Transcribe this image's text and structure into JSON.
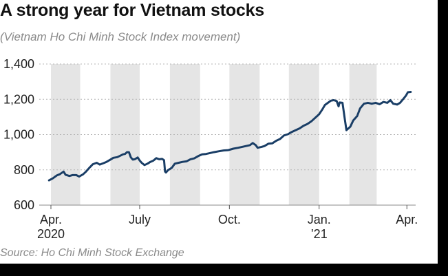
{
  "title": "A strong year for Vietnam stocks",
  "subtitle": "(Vietnam Ho Chi Minh Stock Index movement)",
  "source": "Source: Ho Chi Minh Stock Exchange",
  "colors": {
    "line": "#1a3e66",
    "band": "#e5e5e5",
    "grid": "#b5b5b5",
    "background": "#ffffff",
    "frame": "#000000"
  },
  "chart_data": {
    "type": "line",
    "title": "A strong year for Vietnam stocks",
    "subtitle": "(Vietnam Ho Chi Minh Stock Index movement)",
    "xlabel": "",
    "ylabel": "",
    "ylim": [
      600,
      1400
    ],
    "yticks": [
      600,
      800,
      1000,
      1200,
      1400
    ],
    "ytick_labels": [
      "600",
      "800",
      "1,000",
      "1,200",
      "1,400"
    ],
    "xlim": [
      "2020-03-20",
      "2021-04-10"
    ],
    "xticks": [
      {
        "date": "2020-04-01",
        "label": "Apr.",
        "sublabel": "2020"
      },
      {
        "date": "2020-07-01",
        "label": "July",
        "sublabel": ""
      },
      {
        "date": "2020-10-01",
        "label": "Oct.",
        "sublabel": ""
      },
      {
        "date": "2021-01-01",
        "label": "Jan.",
        "sublabel": "’21"
      },
      {
        "date": "2021-04-01",
        "label": "Apr.",
        "sublabel": ""
      }
    ],
    "grid": true,
    "shaded_months": [
      "2020-04",
      "2020-06",
      "2020-08",
      "2020-10",
      "2020-12",
      "2021-02"
    ],
    "series": [
      {
        "points": [
          [
            "2020-03-30",
            740
          ],
          [
            "2020-04-03",
            752
          ],
          [
            "2020-04-07",
            768
          ],
          [
            "2020-04-10",
            775
          ],
          [
            "2020-04-14",
            790
          ],
          [
            "2020-04-16",
            772
          ],
          [
            "2020-04-20",
            765
          ],
          [
            "2020-04-23",
            770
          ],
          [
            "2020-04-27",
            770
          ],
          [
            "2020-04-30",
            762
          ],
          [
            "2020-05-04",
            775
          ],
          [
            "2020-05-07",
            790
          ],
          [
            "2020-05-11",
            815
          ],
          [
            "2020-05-14",
            832
          ],
          [
            "2020-05-18",
            840
          ],
          [
            "2020-05-21",
            830
          ],
          [
            "2020-05-25",
            838
          ],
          [
            "2020-05-28",
            845
          ],
          [
            "2020-06-01",
            858
          ],
          [
            "2020-06-04",
            868
          ],
          [
            "2020-06-08",
            872
          ],
          [
            "2020-06-11",
            880
          ],
          [
            "2020-06-14",
            888
          ],
          [
            "2020-06-16",
            890
          ],
          [
            "2020-06-18",
            900
          ],
          [
            "2020-06-20",
            900
          ],
          [
            "2020-06-22",
            870
          ],
          [
            "2020-06-24",
            858
          ],
          [
            "2020-06-26",
            860
          ],
          [
            "2020-06-29",
            870
          ],
          [
            "2020-07-01",
            853
          ],
          [
            "2020-07-03",
            840
          ],
          [
            "2020-07-06",
            827
          ],
          [
            "2020-07-09",
            835
          ],
          [
            "2020-07-12",
            845
          ],
          [
            "2020-07-15",
            852
          ],
          [
            "2020-07-18",
            866
          ],
          [
            "2020-07-21",
            860
          ],
          [
            "2020-07-24",
            862
          ],
          [
            "2020-07-26",
            855
          ],
          [
            "2020-07-27",
            790
          ],
          [
            "2020-07-28",
            785
          ],
          [
            "2020-07-30",
            798
          ],
          [
            "2020-08-03",
            812
          ],
          [
            "2020-08-06",
            835
          ],
          [
            "2020-08-10",
            840
          ],
          [
            "2020-08-14",
            845
          ],
          [
            "2020-08-18",
            848
          ],
          [
            "2020-08-22",
            860
          ],
          [
            "2020-08-26",
            865
          ],
          [
            "2020-08-30",
            878
          ],
          [
            "2020-09-03",
            888
          ],
          [
            "2020-09-07",
            890
          ],
          [
            "2020-09-11",
            895
          ],
          [
            "2020-09-15",
            900
          ],
          [
            "2020-09-20",
            905
          ],
          [
            "2020-09-25",
            910
          ],
          [
            "2020-09-30",
            912
          ],
          [
            "2020-10-05",
            920
          ],
          [
            "2020-10-10",
            925
          ],
          [
            "2020-10-14",
            930
          ],
          [
            "2020-10-18",
            935
          ],
          [
            "2020-10-22",
            940
          ],
          [
            "2020-10-25",
            952
          ],
          [
            "2020-10-28",
            940
          ],
          [
            "2020-10-30",
            925
          ],
          [
            "2020-11-03",
            930
          ],
          [
            "2020-11-06",
            935
          ],
          [
            "2020-11-10",
            948
          ],
          [
            "2020-11-14",
            950
          ],
          [
            "2020-11-18",
            965
          ],
          [
            "2020-11-22",
            975
          ],
          [
            "2020-11-26",
            995
          ],
          [
            "2020-11-30",
            1002
          ],
          [
            "2020-12-04",
            1015
          ],
          [
            "2020-12-08",
            1025
          ],
          [
            "2020-12-12",
            1035
          ],
          [
            "2020-12-16",
            1050
          ],
          [
            "2020-12-20",
            1060
          ],
          [
            "2020-12-24",
            1075
          ],
          [
            "2020-12-28",
            1095
          ],
          [
            "2021-01-01",
            1115
          ],
          [
            "2021-01-04",
            1140
          ],
          [
            "2021-01-07",
            1168
          ],
          [
            "2021-01-10",
            1180
          ],
          [
            "2021-01-13",
            1192
          ],
          [
            "2021-01-16",
            1195
          ],
          [
            "2021-01-19",
            1190
          ],
          [
            "2021-01-21",
            1160
          ],
          [
            "2021-01-22",
            1182
          ],
          [
            "2021-01-25",
            1180
          ],
          [
            "2021-01-27",
            1100
          ],
          [
            "2021-01-29",
            1025
          ],
          [
            "2021-02-02",
            1045
          ],
          [
            "2021-02-05",
            1080
          ],
          [
            "2021-02-09",
            1105
          ],
          [
            "2021-02-12",
            1148
          ],
          [
            "2021-02-16",
            1175
          ],
          [
            "2021-02-20",
            1180
          ],
          [
            "2021-02-24",
            1175
          ],
          [
            "2021-02-28",
            1180
          ],
          [
            "2021-03-04",
            1172
          ],
          [
            "2021-03-08",
            1185
          ],
          [
            "2021-03-12",
            1180
          ],
          [
            "2021-03-15",
            1195
          ],
          [
            "2021-03-18",
            1175
          ],
          [
            "2021-03-22",
            1170
          ],
          [
            "2021-03-25",
            1180
          ],
          [
            "2021-03-28",
            1200
          ],
          [
            "2021-03-31",
            1220
          ],
          [
            "2021-04-02",
            1240
          ],
          [
            "2021-04-05",
            1242
          ]
        ]
      }
    ]
  }
}
